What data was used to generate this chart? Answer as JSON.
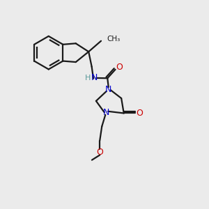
{
  "background_color": "#ebebeb",
  "bond_color": "#1a1a1a",
  "nitrogen_color": "#0000cc",
  "oxygen_color": "#cc0000",
  "nh_color": "#5a9a9a",
  "line_width": 1.6,
  "figsize": [
    3.0,
    3.0
  ],
  "dpi": 100,
  "xlim": [
    0,
    10
  ],
  "ylim": [
    0,
    10
  ]
}
